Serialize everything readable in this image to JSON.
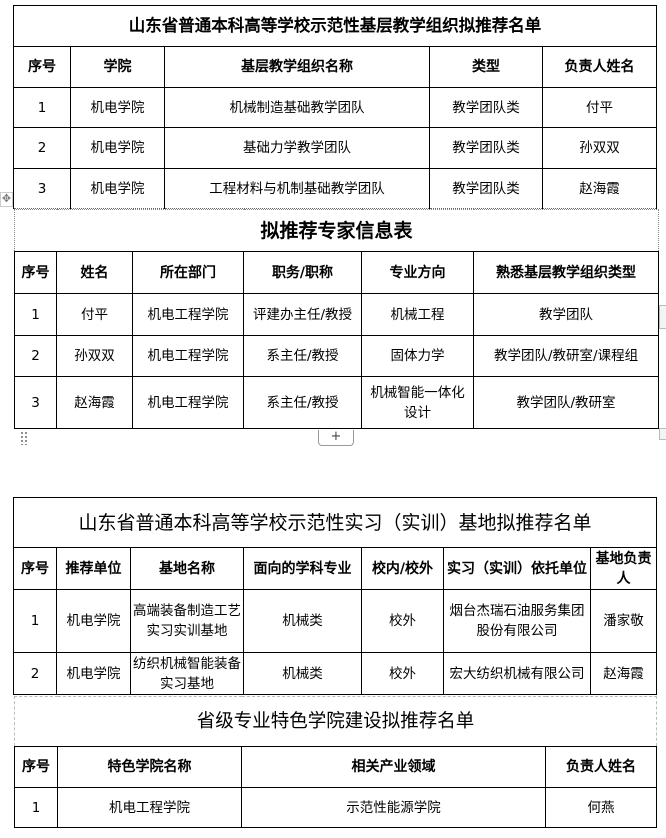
{
  "table1": {
    "title": "山东省普通本科高等学校示范性基层教学组织拟推荐名单",
    "headers": [
      "序号",
      "学院",
      "基层教学组织名称",
      "类型",
      "负责人姓名"
    ],
    "rows": [
      [
        "1",
        "机电学院",
        "机械制造基础教学团队",
        "教学团队类",
        "付平"
      ],
      [
        "2",
        "机电学院",
        "基础力学教学团队",
        "教学团队类",
        "孙双双"
      ],
      [
        "3",
        "机电学院",
        "工程材料与机制基础教学团队",
        "教学团队类",
        "赵海霞"
      ]
    ]
  },
  "table2": {
    "title": "拟推荐专家信息表",
    "headers": [
      "序号",
      "姓名",
      "所在部门",
      "职务/职称",
      "专业方向",
      "熟悉基层教学组织类型"
    ],
    "rows": [
      [
        "1",
        "付平",
        "机电工程学院",
        "评建办主任/教授",
        "机械工程",
        "教学团队"
      ],
      [
        "2",
        "孙双双",
        "机电工程学院",
        "系主任/教授",
        "固体力学",
        "教学团队/教研室/课程组"
      ],
      [
        "3",
        "赵海霞",
        "机电工程学院",
        "系主任/教授",
        "机械智能一体化设计",
        "教学团队/教研室"
      ]
    ]
  },
  "table3": {
    "title": "山东省普通本科高等学校示范性实习（实训）基地拟推荐名单",
    "headers": [
      "序号",
      "推荐单位",
      "基地名称",
      "面向的学科专业",
      "校内/校外",
      "实习（实训）依托单位",
      "基地负责人"
    ],
    "rows": [
      [
        "1",
        "机电学院",
        "高端装备制造工艺实习实训基地",
        "机械类",
        "校外",
        "烟台杰瑞石油服务集团股份有限公司",
        "潘家敬"
      ],
      [
        "2",
        "机电学院",
        "纺织机械智能装备实习基地",
        "机械类",
        "校外",
        "宏大纺织机械有限公司",
        "赵海霞"
      ]
    ]
  },
  "table4": {
    "title": "省级专业特色学院建设拟推荐名单",
    "headers": [
      "序号",
      "特色学院名称",
      "相关产业领域",
      "负责人姓名"
    ],
    "rows": [
      [
        "1",
        "机电工程学院",
        "示范性能源学院",
        "何燕"
      ]
    ]
  },
  "editor": {
    "add_row_label": "+",
    "move_handle_icon": "move-icon",
    "drag_icon": "drag-dots-icon"
  }
}
